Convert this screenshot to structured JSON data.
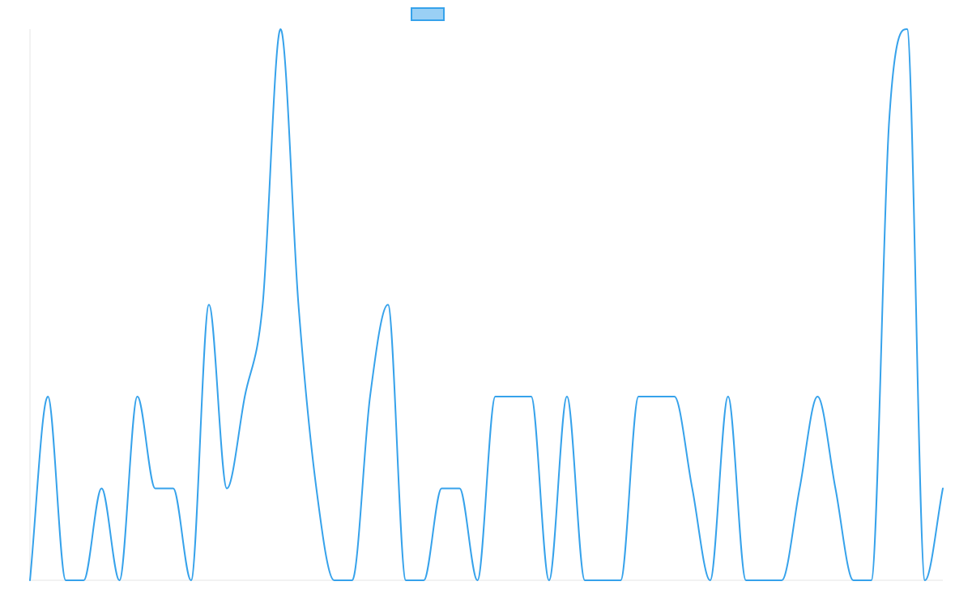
{
  "chart_data": {
    "type": "line",
    "title": "",
    "xlabel": "",
    "ylabel": "",
    "x": [
      0,
      1,
      2,
      3,
      4,
      5,
      6,
      7,
      8,
      9,
      10,
      11,
      12,
      13,
      14,
      15,
      16,
      17,
      18,
      19,
      20,
      21,
      22,
      23,
      24,
      25,
      26,
      27,
      28,
      29,
      30,
      31,
      32,
      33,
      34,
      35,
      36,
      37,
      38,
      39,
      40,
      41,
      42,
      43,
      44,
      45,
      46,
      47,
      48,
      49,
      50,
      51
    ],
    "ylim": [
      0,
      6
    ],
    "grid": false,
    "legend": {
      "position": "top-center",
      "entries": [
        {
          "label": ""
        }
      ]
    },
    "series": [
      {
        "values": [
          0,
          2,
          0,
          0,
          1,
          0,
          2,
          1,
          1,
          0,
          3,
          1,
          2,
          3,
          6,
          3,
          1,
          0,
          0,
          2,
          3,
          0,
          0,
          1,
          1,
          0,
          2,
          2,
          2,
          0,
          2,
          0,
          0,
          0,
          2,
          2,
          2,
          1,
          0,
          2,
          0,
          0,
          0,
          1,
          2,
          1,
          0,
          0,
          5,
          6,
          0,
          1
        ]
      }
    ],
    "colors": {
      "line": "#36a2eb",
      "legend_fill": "#9ad0f5",
      "axis": "#e6e6e6"
    }
  }
}
